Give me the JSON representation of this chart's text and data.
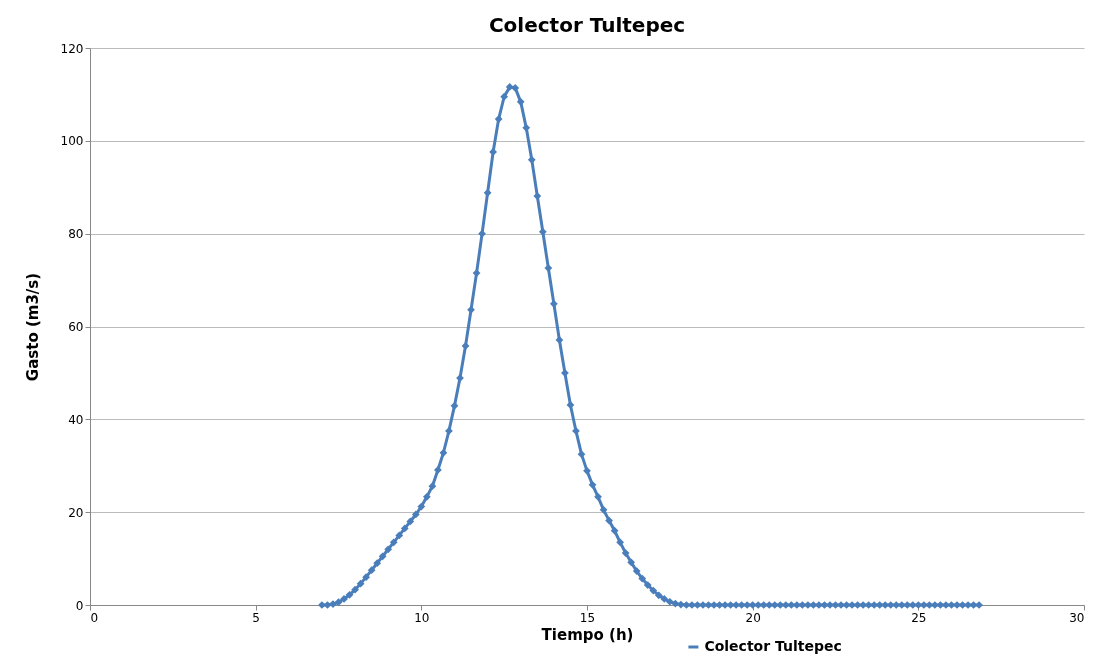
{
  "chart_data": {
    "type": "line",
    "title": "Colector Tultepec",
    "xlabel": "Tiempo (h)",
    "ylabel": "Gasto (m3/s)",
    "x": [
      7,
      7.1667,
      7.3333,
      7.5,
      7.6667,
      7.8333,
      8,
      8.1667,
      8.3333,
      8.5,
      8.6667,
      8.8333,
      9,
      9.1667,
      9.3333,
      9.5,
      9.6667,
      9.8333,
      10,
      10.1667,
      10.3333,
      10.5,
      10.6667,
      10.8333,
      11,
      11.1667,
      11.3333,
      11.5,
      11.6667,
      11.8333,
      12,
      12.1667,
      12.3333,
      12.5,
      12.6667,
      12.8333,
      13,
      13.1667,
      13.3333,
      13.5,
      13.6667,
      13.8333,
      14,
      14.1667,
      14.3333,
      14.5,
      14.6667,
      14.8333,
      15,
      15.1667,
      15.3333,
      15.5,
      15.6667,
      15.8333,
      16,
      16.1667,
      16.3333,
      16.5,
      16.6667,
      16.8333,
      17,
      17.1667,
      17.3333,
      17.5,
      17.6667,
      17.8333,
      18,
      18.1667,
      18.3333,
      18.5,
      18.6667,
      18.8333,
      19,
      19.1667,
      19.3333,
      19.5,
      19.6667,
      19.8333,
      20,
      20.1667,
      20.3333,
      20.5,
      20.6667,
      20.8333,
      21,
      21.1667,
      21.3333,
      21.5,
      21.6667,
      21.8333,
      22,
      22.1667,
      22.3333,
      22.5,
      22.6667,
      22.8333,
      23,
      23.1667,
      23.3333,
      23.5,
      23.6667,
      23.8333,
      24,
      24.1667,
      24.3333,
      24.5,
      24.6667,
      24.8333,
      25,
      25.1667,
      25.3333,
      25.5,
      25.6667,
      25.8333,
      26,
      26.1667,
      26.3333,
      26.5,
      26.6667,
      26.8333
    ],
    "series": [
      {
        "name": "Colector Tultepec",
        "color": "#4a7ebb",
        "values": [
          0,
          0,
          0.2,
          0.6,
          1.3,
          2.2,
          3.3,
          4.6,
          6,
          7.5,
          9,
          10.5,
          12,
          13.5,
          15,
          16.5,
          18,
          19.5,
          21.2,
          23.3,
          25.6,
          29.1,
          32.8,
          37.5,
          42.9,
          48.9,
          55.8,
          63.6,
          71.5,
          80,
          88.8,
          97.6,
          104.7,
          109.5,
          111.6,
          111.4,
          108.4,
          102.8,
          95.9,
          88.1,
          80.4,
          72.6,
          64.9,
          57.1,
          50,
          43.1,
          37.5,
          32.5,
          28.9,
          25.9,
          23.3,
          20.5,
          18.2,
          16,
          13.5,
          11.2,
          9.2,
          7.3,
          5.7,
          4.3,
          3.1,
          2.1,
          1.3,
          0.7,
          0.3,
          0.1,
          0,
          0,
          0,
          0,
          0,
          0,
          0,
          0,
          0,
          0,
          0,
          0,
          0,
          0,
          0,
          0,
          0,
          0,
          0,
          0,
          0,
          0,
          0,
          0,
          0,
          0,
          0,
          0,
          0,
          0,
          0,
          0,
          0,
          0,
          0,
          0,
          0,
          0,
          0,
          0,
          0,
          0,
          0,
          0,
          0,
          0,
          0,
          0,
          0,
          0,
          0,
          0,
          0,
          0
        ]
      }
    ],
    "xlim": [
      0,
      30
    ],
    "xticks": [
      0,
      5,
      10,
      15,
      20,
      25,
      30
    ],
    "ylim": [
      0,
      120
    ],
    "yticks": [
      0,
      20,
      40,
      60,
      80,
      100,
      120
    ],
    "grid": "y",
    "legend": "bottom",
    "marker": "diamond",
    "line_style": "solid"
  }
}
